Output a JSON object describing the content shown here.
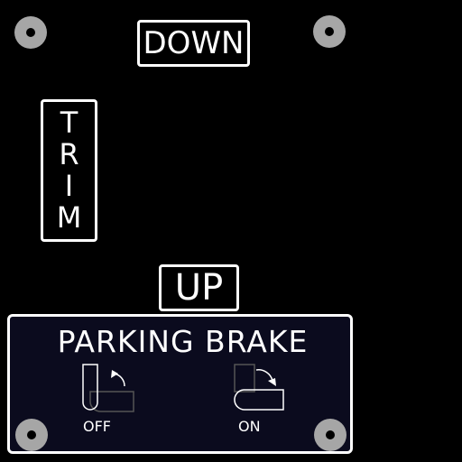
{
  "trim_panel": {
    "down_label": "DOWN",
    "up_label": "UP",
    "trim_letters": [
      "T",
      "R",
      "I",
      "M"
    ]
  },
  "parking_brake": {
    "title": "PARKING BRAKE",
    "off_label": "OFF",
    "on_label": "ON"
  },
  "colors": {
    "background": "#000000",
    "panel_fill": "#0b0b1e",
    "text": "#ffffff",
    "screw": "#a6a6a6",
    "inactive_outline": "#555555"
  },
  "icons": [
    "screw-icon",
    "lever-up-icon",
    "lever-down-icon",
    "rotate-arrow-icon"
  ]
}
